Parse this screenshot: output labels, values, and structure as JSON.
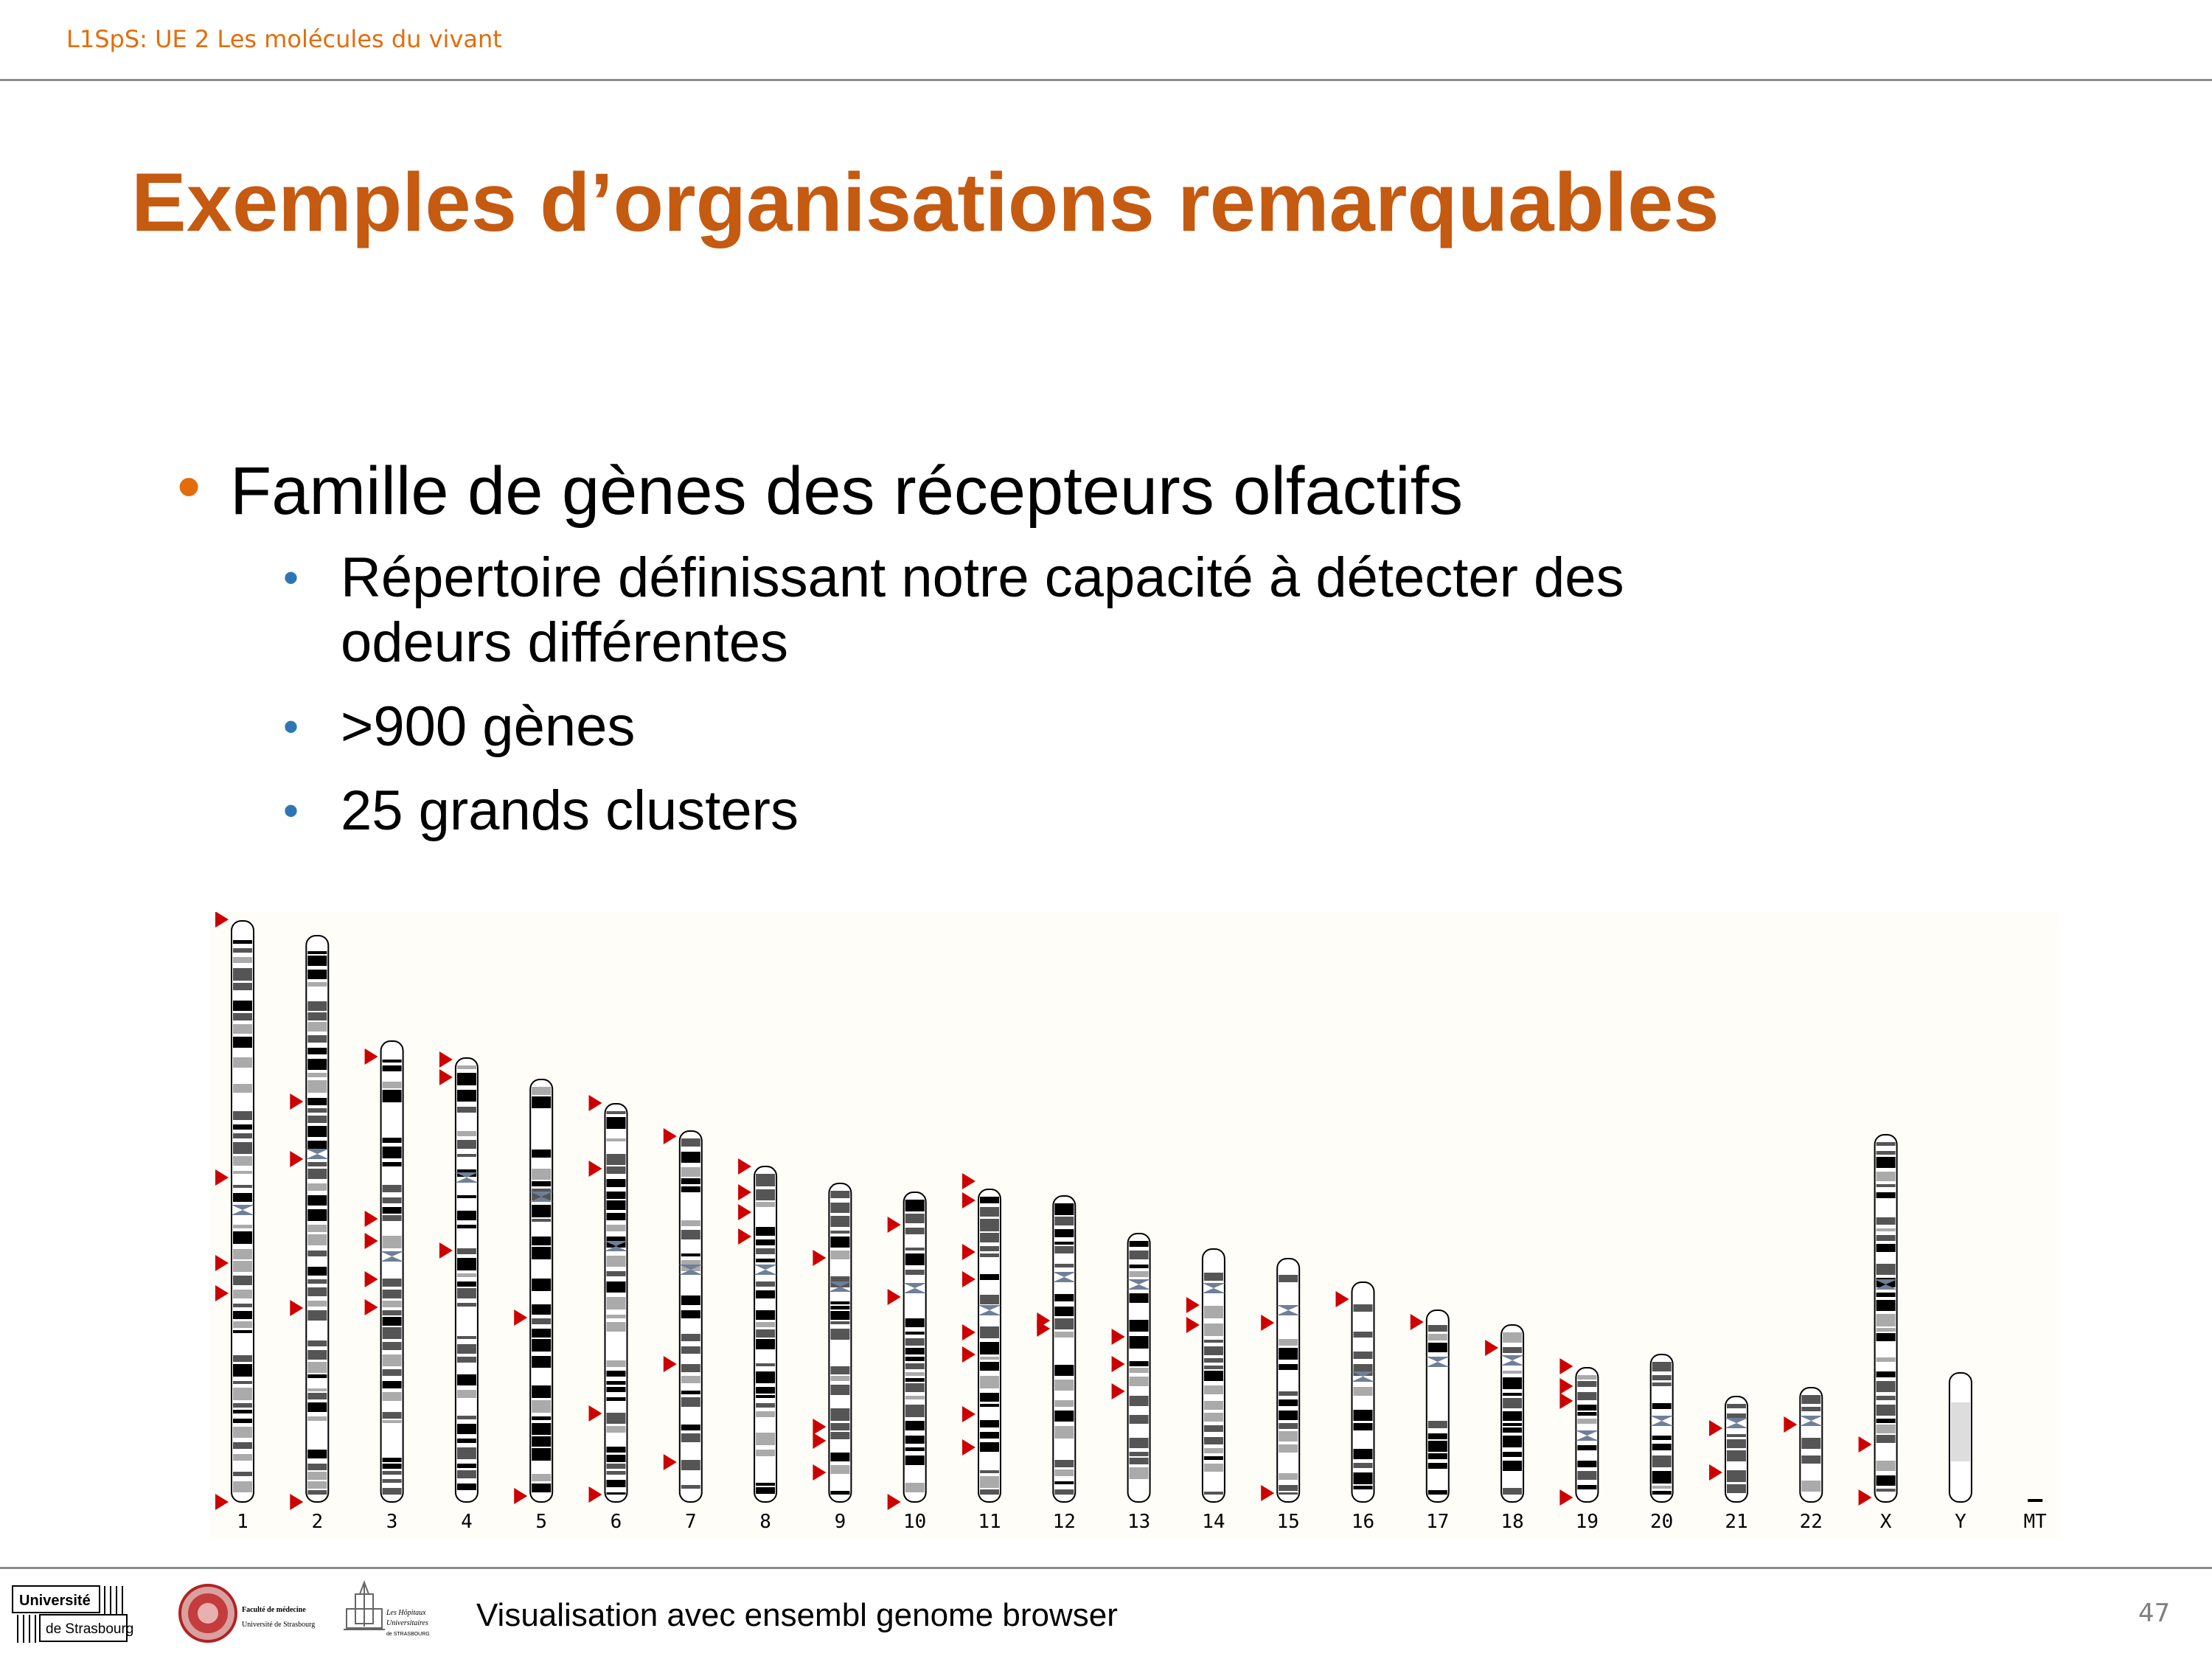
{
  "header": {
    "course": "L1SpS: UE 2 Les molécules du vivant"
  },
  "slide": {
    "title": "Exemples d’organisations remarquables",
    "bullets": {
      "main": "Famille de gènes des récepteurs olfactifs",
      "sub1_line1": "Répertoire définissant notre capacité à détecter des",
      "sub1_line2": "odeurs différentes",
      "sub2": ">900 gènes",
      "sub3": "25 grands clusters"
    },
    "bullet_glyph": "•"
  },
  "figure": {
    "chromosome_labels": [
      "1",
      "2",
      "3",
      "4",
      "5",
      "6",
      "7",
      "8",
      "9",
      "10",
      "11",
      "12",
      "13",
      "14",
      "15",
      "16",
      "17",
      "18",
      "19",
      "20",
      "21",
      "22",
      "X",
      "Y",
      "MT"
    ],
    "marker_color": "#cc0000"
  },
  "footer": {
    "caption": "Visualisation avec ensembl genome browser",
    "page_number": "47",
    "logo_univ_line1": "Université",
    "logo_univ_line2": "de Strasbourg",
    "logo_fac_line1": "Faculté de médecine",
    "logo_fac_line2": "Université de Strasbourg",
    "logo_hop_line1": "Les Hôpitaux",
    "logo_hop_line2": "Universitaires",
    "logo_hop_line3": "de STRASBOURG"
  },
  "colors": {
    "header_accent": "#e46c0a",
    "title": "#c55a11",
    "level2_bullet": "#2e75b6"
  }
}
